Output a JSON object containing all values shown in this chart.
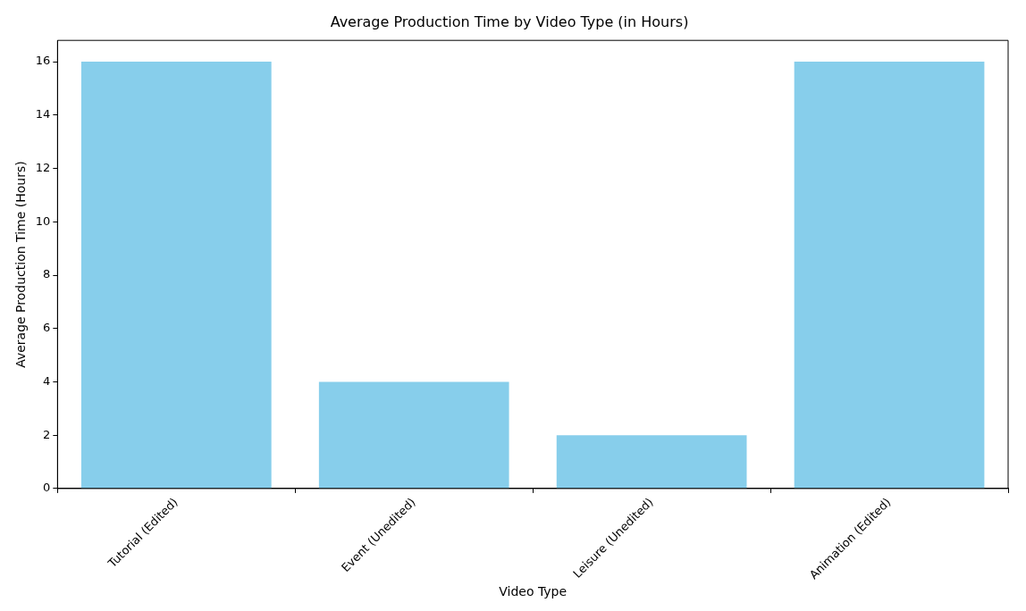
{
  "chart_data": {
    "type": "bar",
    "title": "Average Production Time by Video Type (in Hours)",
    "xlabel": "Video Type",
    "ylabel": "Average Production Time (Hours)",
    "categories": [
      "Tutorial (Edited)",
      "Event (Unedited)",
      "Leisure (Unedited)",
      "Animation (Edited)"
    ],
    "values": [
      16,
      4,
      2,
      16
    ],
    "color": "#87ceeb",
    "ylim": [
      0,
      16.8
    ],
    "yticks": [
      0,
      2,
      4,
      6,
      8,
      10,
      12,
      14,
      16
    ],
    "grid": false,
    "legend": false
  }
}
